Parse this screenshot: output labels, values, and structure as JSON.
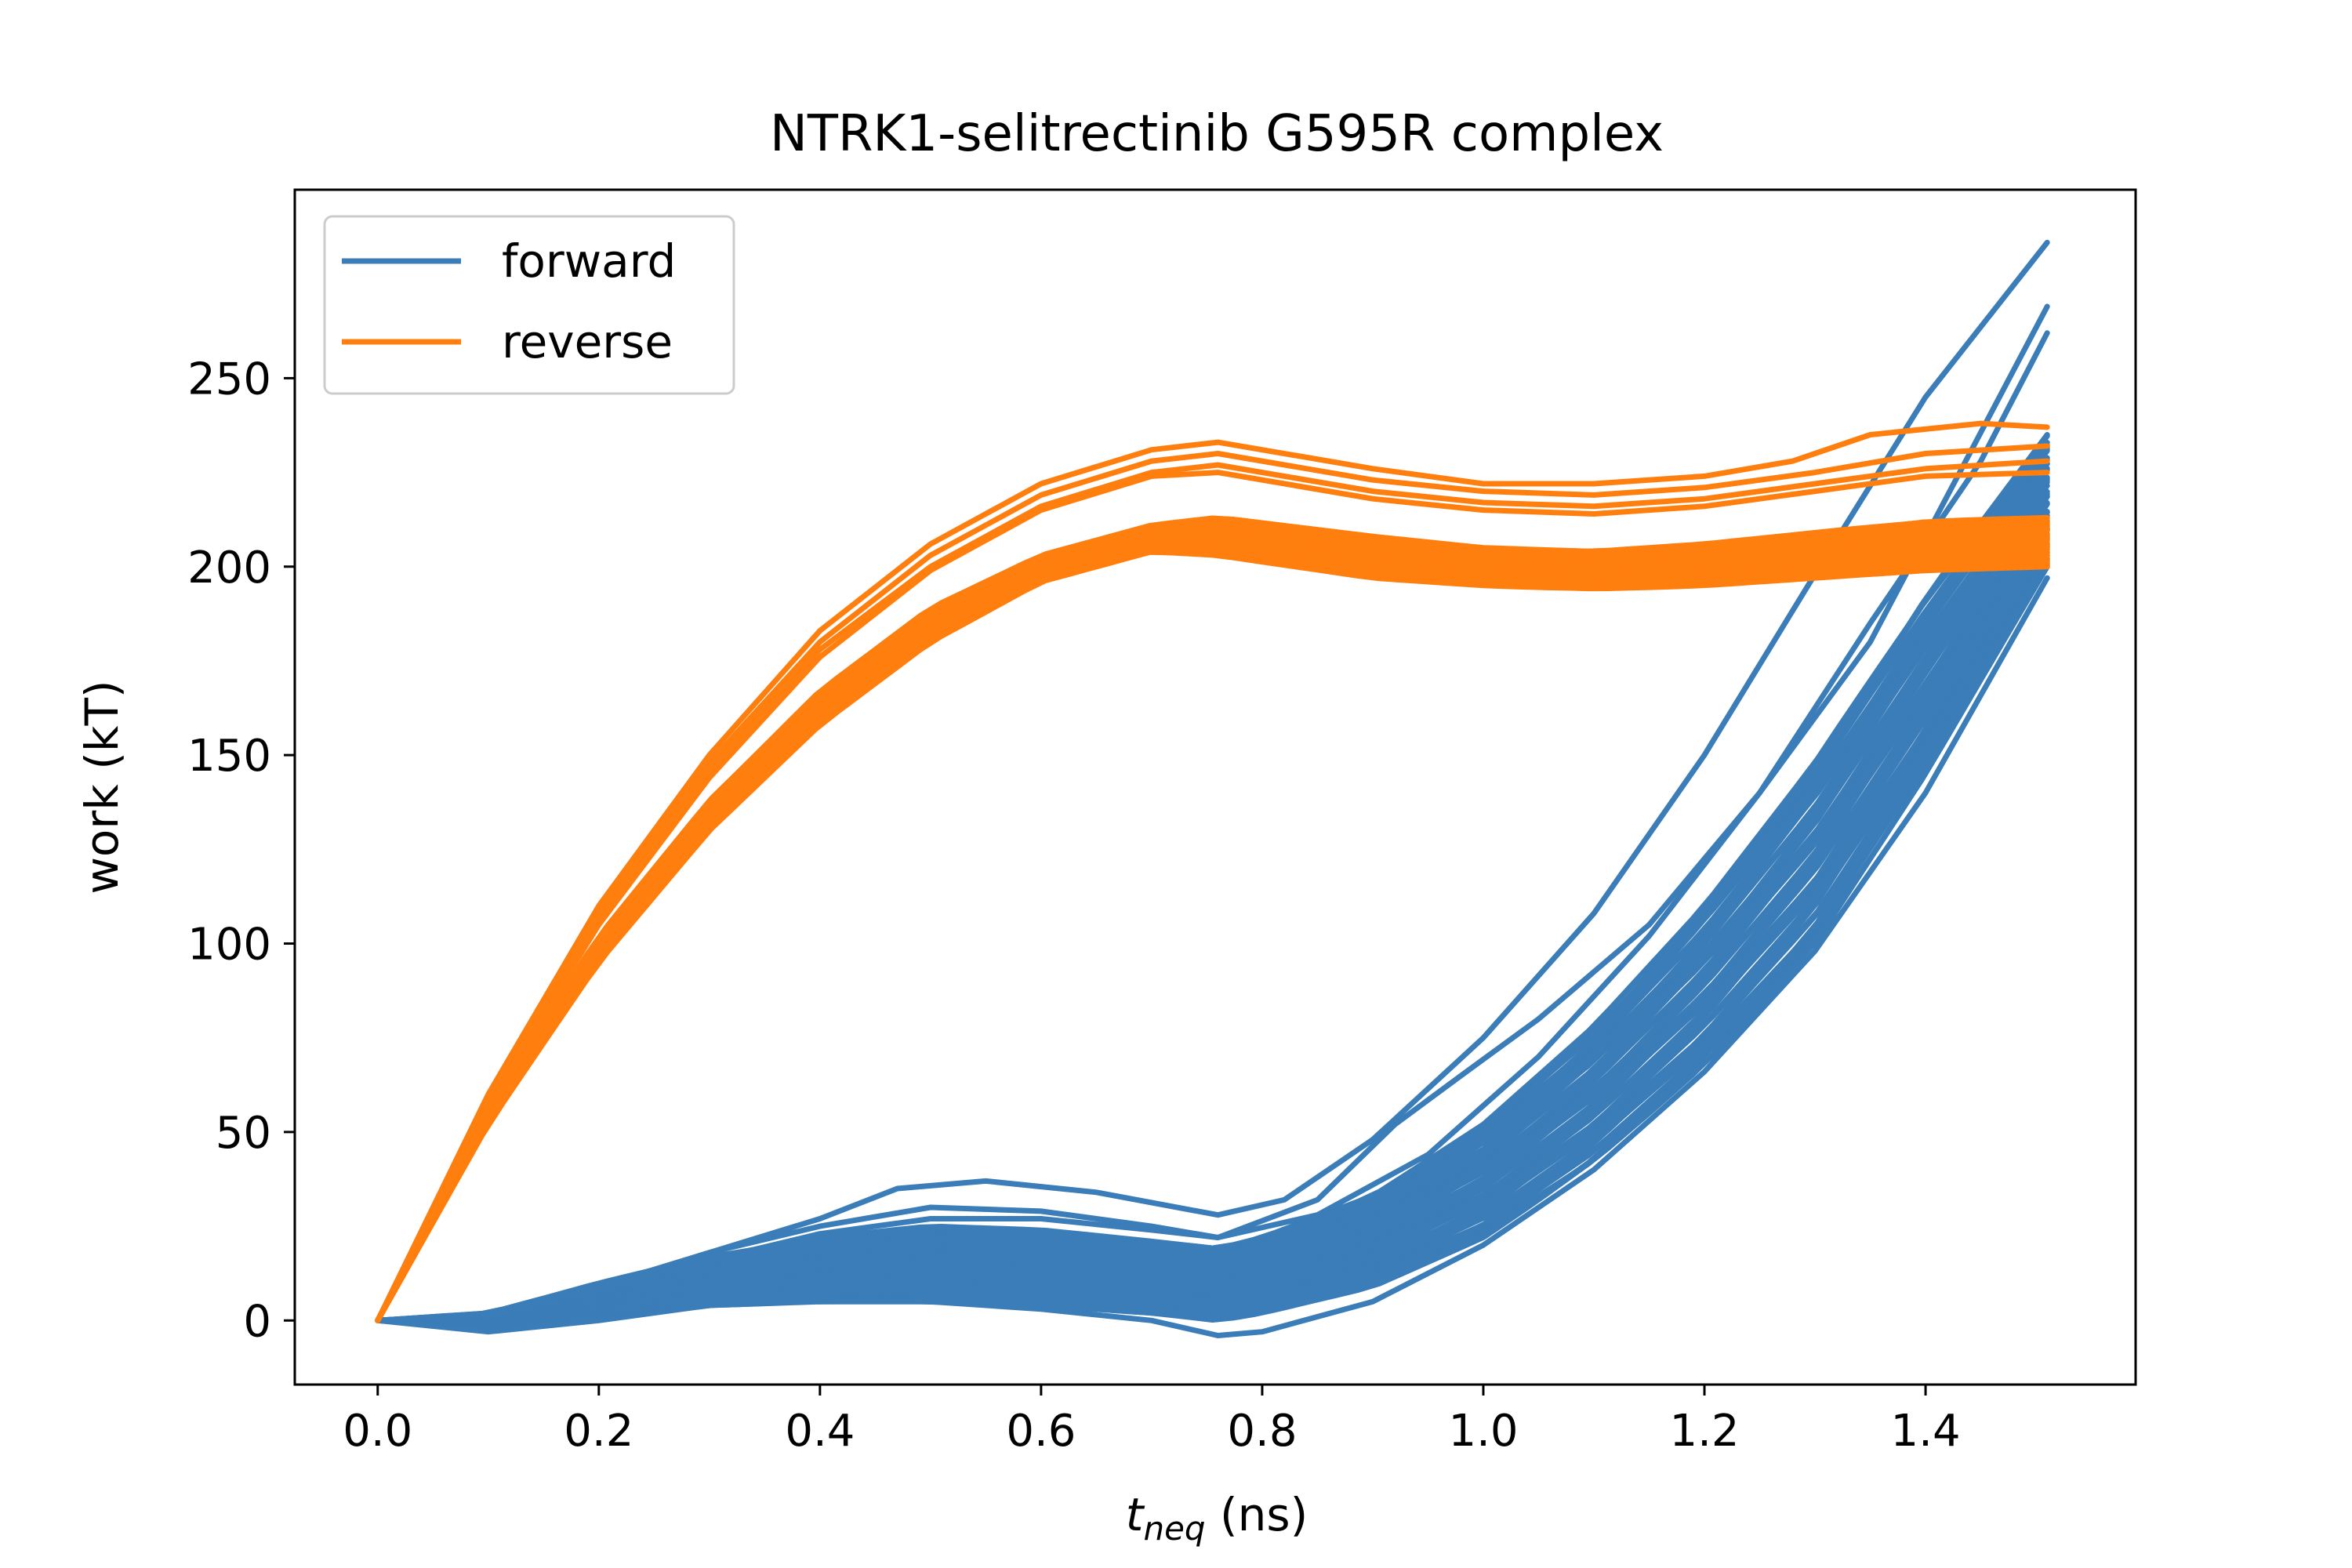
{
  "chart_data": {
    "type": "line",
    "title": "NTRK1-selitrectinib G595R complex",
    "xlabel_main": "t",
    "xlabel_sub": "neq",
    "xlabel_unit": " (ns)",
    "ylabel": "work (kT)",
    "xlim": [
      -0.075,
      1.59
    ],
    "ylim": [
      -17,
      300
    ],
    "xticks": [
      0.0,
      0.2,
      0.4,
      0.6,
      0.8,
      1.0,
      1.2,
      1.4
    ],
    "xtick_labels": [
      "0.0",
      "0.2",
      "0.4",
      "0.6",
      "0.8",
      "1.0",
      "1.2",
      "1.4"
    ],
    "yticks": [
      0,
      50,
      100,
      150,
      200,
      250
    ],
    "ytick_labels": [
      "0",
      "50",
      "100",
      "150",
      "200",
      "250"
    ],
    "grid": false,
    "legend_position": "top-left",
    "series": [
      {
        "name": "forward",
        "color": "#3a7db8",
        "band_lower": {
          "x": [
            0.0,
            0.1,
            0.2,
            0.3,
            0.4,
            0.5,
            0.6,
            0.7,
            0.76,
            0.8,
            0.9,
            1.0,
            1.1,
            1.2,
            1.3,
            1.4,
            1.51
          ],
          "y": [
            0,
            -2,
            1,
            4,
            5,
            5,
            4,
            2,
            0,
            2,
            9,
            22,
            42,
            68,
            100,
            145,
            200
          ]
        },
        "band_upper": {
          "x": [
            0.0,
            0.1,
            0.2,
            0.3,
            0.4,
            0.5,
            0.6,
            0.7,
            0.76,
            0.8,
            0.9,
            1.0,
            1.1,
            1.2,
            1.3,
            1.4,
            1.51
          ],
          "y": [
            0,
            2,
            10,
            17,
            22,
            25,
            24,
            21,
            19,
            22,
            33,
            52,
            78,
            110,
            148,
            192,
            235
          ]
        },
        "highlight_runs": [
          {
            "x": [
              0.0,
              0.1,
              0.2,
              0.3,
              0.4,
              0.47,
              0.55,
              0.65,
              0.76,
              0.82,
              0.9,
              1.0,
              1.1,
              1.2,
              1.3,
              1.4,
              1.51
            ],
            "y": [
              0,
              1,
              9,
              18,
              27,
              35,
              37,
              34,
              28,
              32,
              48,
              75,
              108,
              150,
              198,
              245,
              286
            ]
          },
          {
            "x": [
              0.0,
              0.1,
              0.2,
              0.3,
              0.4,
              0.5,
              0.6,
              0.7,
              0.76,
              0.85,
              0.92,
              0.98,
              1.05,
              1.15,
              1.25,
              1.35,
              1.51
            ],
            "y": [
              0,
              1,
              8,
              16,
              23,
              27,
              27,
              24,
              22,
              32,
              52,
              65,
              80,
              105,
              140,
              180,
              269
            ]
          },
          {
            "x": [
              0.0,
              0.1,
              0.2,
              0.3,
              0.4,
              0.5,
              0.6,
              0.7,
              0.76,
              0.85,
              0.95,
              1.05,
              1.15,
              1.25,
              1.35,
              1.45,
              1.51
            ],
            "y": [
              0,
              1,
              9,
              18,
              25,
              30,
              29,
              25,
              22,
              28,
              44,
              70,
              102,
              140,
              185,
              228,
              262
            ]
          },
          {
            "x": [
              0.0,
              0.1,
              0.2,
              0.3,
              0.4,
              0.5,
              0.6,
              0.7,
              0.76,
              0.8,
              0.9,
              1.0,
              1.1,
              1.2,
              1.3,
              1.4,
              1.51
            ],
            "y": [
              0,
              -3,
              0,
              4,
              6,
              5,
              3,
              0,
              -4,
              -3,
              5,
              20,
              40,
              66,
              98,
              140,
              197
            ]
          }
        ]
      },
      {
        "name": "reverse",
        "color": "#ff7f0e",
        "band_lower": {
          "x": [
            0.0,
            0.1,
            0.2,
            0.3,
            0.4,
            0.5,
            0.6,
            0.7,
            0.76,
            0.9,
            1.0,
            1.1,
            1.2,
            1.3,
            1.4,
            1.51
          ],
          "y": [
            0,
            52,
            95,
            130,
            158,
            180,
            196,
            204,
            203,
            197,
            195,
            194,
            195,
            197,
            199,
            200
          ]
        },
        "band_upper": {
          "x": [
            0.0,
            0.1,
            0.2,
            0.3,
            0.4,
            0.5,
            0.6,
            0.7,
            0.76,
            0.9,
            1.0,
            1.1,
            1.2,
            1.3,
            1.4,
            1.51
          ],
          "y": [
            0,
            57,
            102,
            138,
            167,
            189,
            203,
            211,
            213,
            208,
            205,
            204,
            206,
            209,
            212,
            213
          ]
        },
        "highlight_runs": [
          {
            "x": [
              0.0,
              0.1,
              0.2,
              0.3,
              0.4,
              0.5,
              0.6,
              0.7,
              0.76,
              0.9,
              1.0,
              1.1,
              1.2,
              1.28,
              1.35,
              1.45,
              1.51
            ],
            "y": [
              0,
              60,
              110,
              150,
              183,
              206,
              222,
              231,
              233,
              226,
              222,
              222,
              224,
              228,
              235,
              238,
              237
            ]
          },
          {
            "x": [
              0.0,
              0.1,
              0.2,
              0.3,
              0.4,
              0.5,
              0.6,
              0.7,
              0.76,
              0.9,
              1.0,
              1.1,
              1.2,
              1.3,
              1.4,
              1.51
            ],
            "y": [
              0,
              59,
              108,
              148,
              180,
              203,
              219,
              228,
              230,
              223,
              220,
              219,
              221,
              225,
              230,
              232
            ]
          },
          {
            "x": [
              0.0,
              0.1,
              0.2,
              0.3,
              0.4,
              0.5,
              0.6,
              0.7,
              0.76,
              0.9,
              1.0,
              1.1,
              1.2,
              1.3,
              1.4,
              1.51
            ],
            "y": [
              0,
              58,
              106,
              146,
              178,
              200,
              216,
              225,
              227,
              220,
              217,
              216,
              218,
              222,
              226,
              228
            ]
          },
          {
            "x": [
              0.0,
              0.1,
              0.2,
              0.3,
              0.4,
              0.5,
              0.6,
              0.7,
              0.76,
              0.9,
              1.0,
              1.1,
              1.2,
              1.3,
              1.4,
              1.51
            ],
            "y": [
              0,
              58,
              105,
              144,
              176,
              199,
              215,
              224,
              225,
              218,
              215,
              214,
              216,
              220,
              224,
              225
            ]
          }
        ]
      }
    ]
  }
}
